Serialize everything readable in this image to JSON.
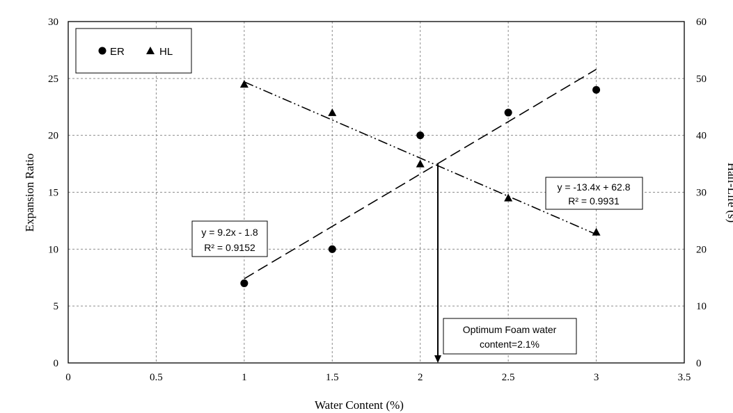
{
  "chart_data": {
    "type": "scatter",
    "title": "",
    "xlabel": "Water Content (%)",
    "ylabel": "Expansion Ratio",
    "y2label": "Half-Life (s)",
    "xlim": [
      0,
      3.5
    ],
    "xticks": [
      0,
      0.5,
      1,
      1.5,
      2,
      2.5,
      3,
      3.5
    ],
    "xtick_labels": [
      "0",
      "0.5",
      "1",
      "1.5",
      "2",
      "2.5",
      "3",
      "3.5"
    ],
    "ylim": [
      0,
      30
    ],
    "yticks": [
      0,
      5,
      10,
      15,
      20,
      25,
      30
    ],
    "ytick_labels": [
      "0",
      "5",
      "10",
      "15",
      "20",
      "25",
      "30"
    ],
    "y2lim": [
      0,
      60
    ],
    "y2ticks": [
      0,
      10,
      20,
      30,
      40,
      50,
      60
    ],
    "y2tick_labels": [
      "0",
      "10",
      "20",
      "30",
      "40",
      "50",
      "60"
    ],
    "grid": true,
    "legend_position": "top-left",
    "series": [
      {
        "name": "ER",
        "axis": "left",
        "marker": "circle",
        "x": [
          1,
          1.5,
          2,
          2.5,
          3
        ],
        "y": [
          7,
          10,
          20,
          22,
          24
        ],
        "trendline": {
          "style": "dashed",
          "x_range": [
            1,
            3
          ],
          "equation": "y = 9.2x - 1.8",
          "r2": "R² = 0.9152"
        }
      },
      {
        "name": "HL",
        "axis": "right",
        "marker": "triangle",
        "x": [
          1,
          1.5,
          2,
          2.5,
          3
        ],
        "y": [
          49,
          44,
          35,
          29,
          23
        ],
        "trendline": {
          "style": "dash-dot-dot",
          "x_range": [
            1,
            3
          ],
          "equation": "y = -13.4x + 62.8",
          "r2": "R² = 0.9931"
        }
      }
    ],
    "annotation": {
      "lines": [
        "Optimum Foam water",
        "content=2.1%"
      ],
      "x": 2.1
    },
    "colors": {
      "marker": "#000000",
      "grid": "#8c8c8c",
      "background": "#ffffff"
    }
  }
}
